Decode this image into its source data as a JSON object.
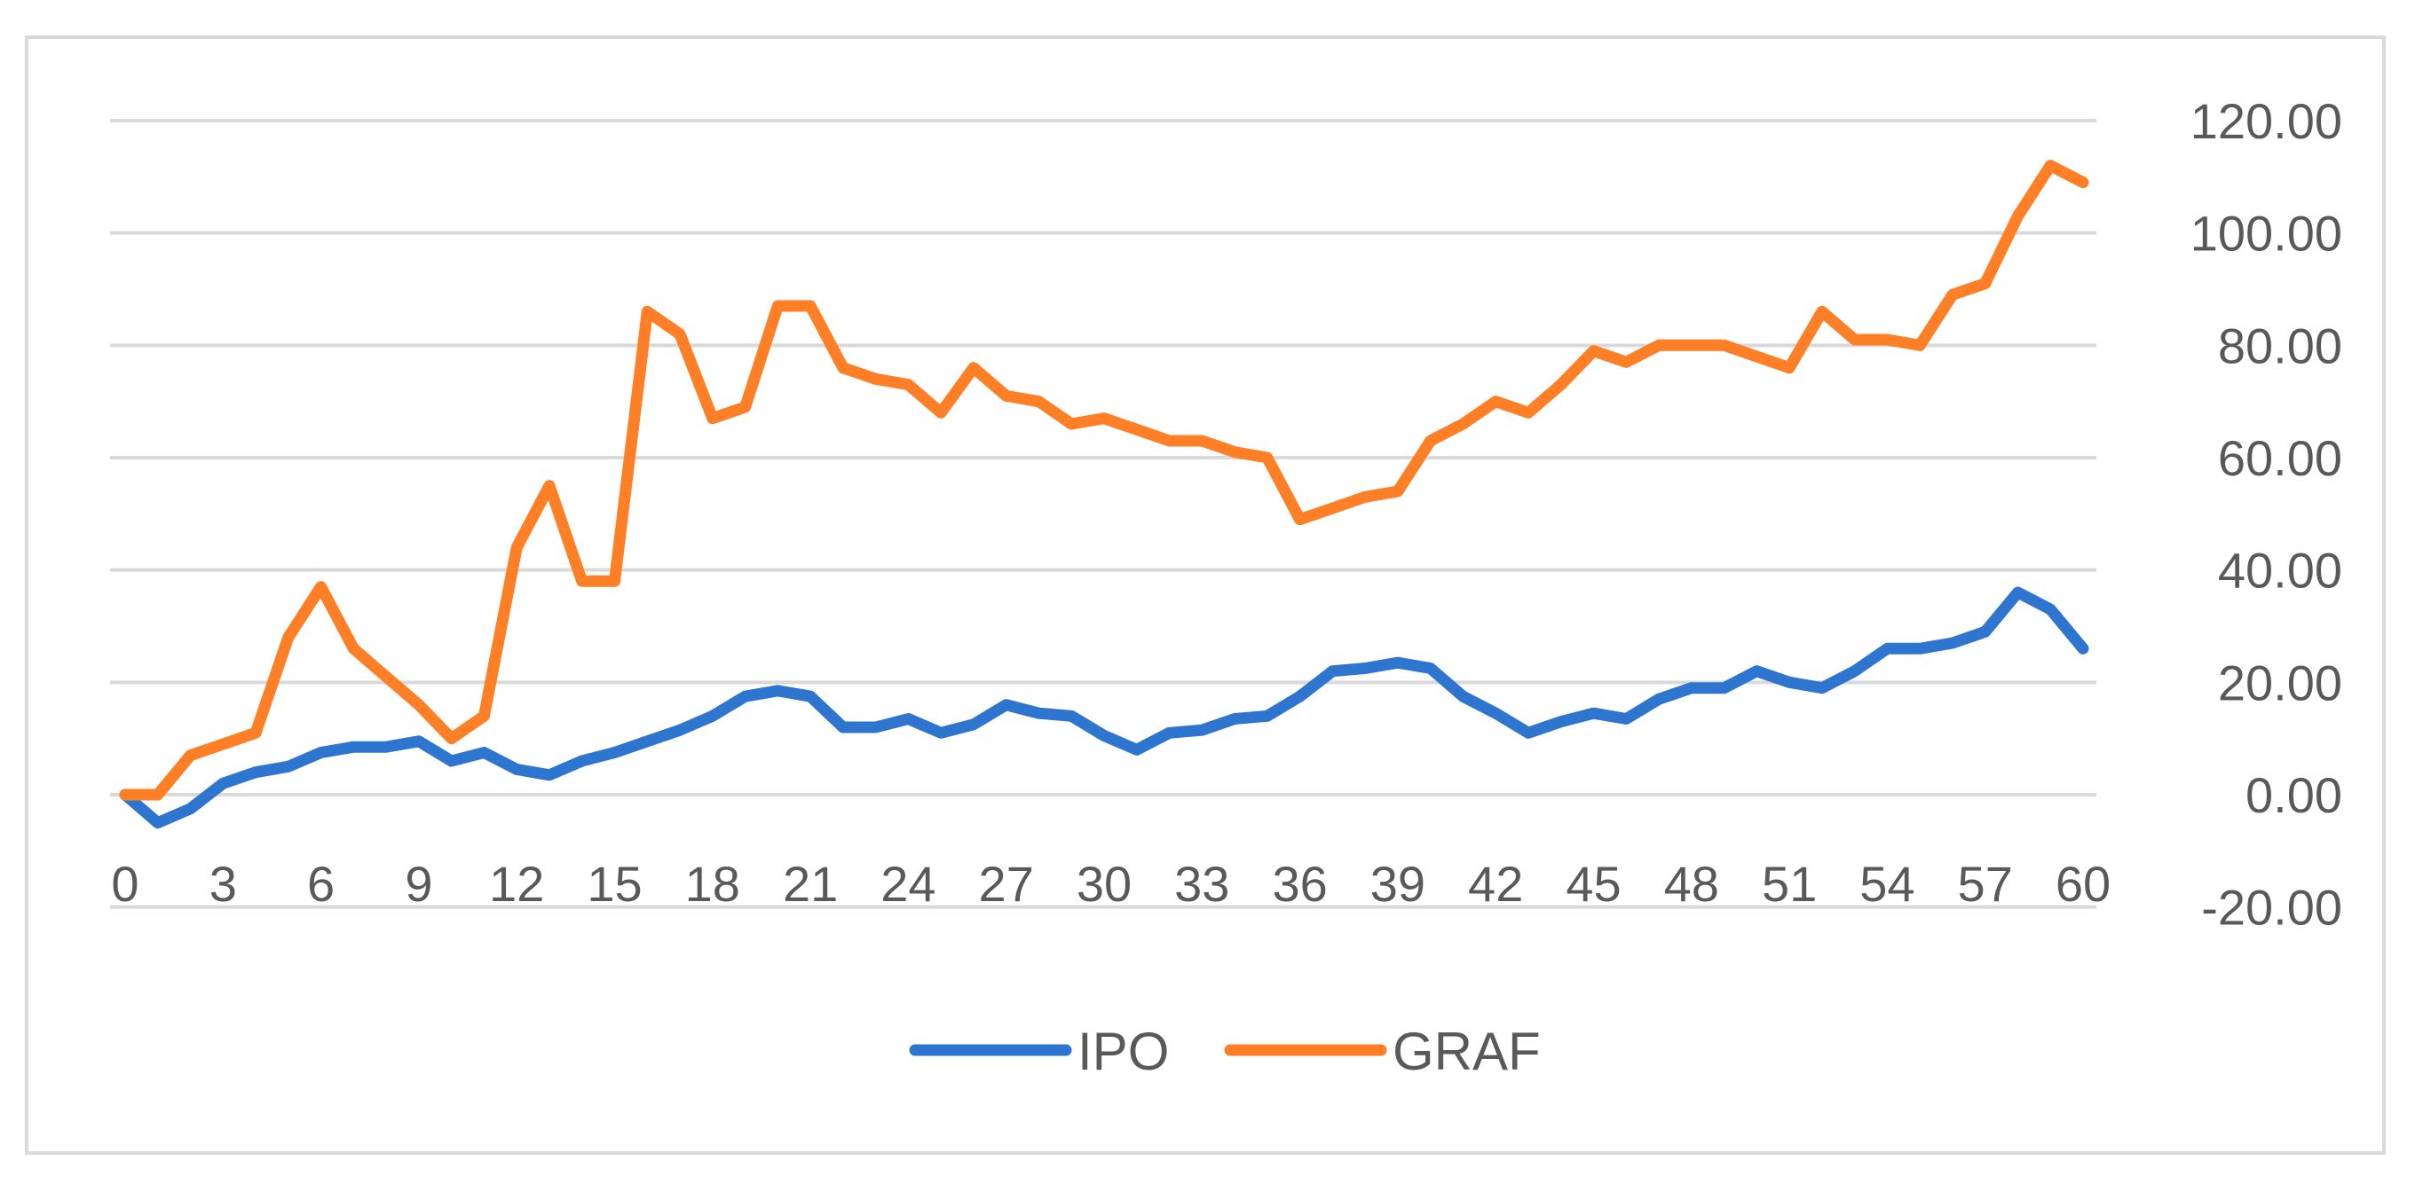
{
  "chart_data": {
    "type": "line",
    "title": "",
    "xlabel": "",
    "ylabel": "",
    "grid": true,
    "legend_position": "bottom",
    "y_axis_position": "right",
    "ylim": [
      -20,
      120
    ],
    "y_ticks": [
      -20,
      0,
      20,
      40,
      60,
      80,
      100,
      120
    ],
    "y_tick_labels": [
      "-20.00",
      "0.00",
      "20.00",
      "40.00",
      "60.00",
      "80.00",
      "100.00",
      "120.00"
    ],
    "x_ticks": [
      0,
      3,
      6,
      9,
      12,
      15,
      18,
      21,
      24,
      27,
      30,
      33,
      36,
      39,
      42,
      45,
      48,
      51,
      54,
      57,
      60
    ],
    "x": [
      0,
      1,
      2,
      3,
      4,
      5,
      6,
      7,
      8,
      9,
      10,
      11,
      12,
      13,
      14,
      15,
      16,
      17,
      18,
      19,
      20,
      21,
      22,
      23,
      24,
      25,
      26,
      27,
      28,
      29,
      30,
      31,
      32,
      33,
      34,
      35,
      36,
      37,
      38,
      39,
      40,
      41,
      42,
      43,
      44,
      45,
      46,
      47,
      48,
      49,
      50,
      51,
      52,
      53,
      54,
      55,
      56,
      57,
      58,
      59,
      60
    ],
    "series": [
      {
        "name": "IPO",
        "color": "#2e75d0",
        "values": [
          0,
          -5,
          -2.5,
          2,
          4,
          5,
          7.5,
          8.5,
          8.5,
          9.5,
          6,
          7.5,
          4.5,
          3.5,
          6,
          7.5,
          9.5,
          11.5,
          14,
          17.5,
          18.5,
          17.5,
          12,
          12,
          13.5,
          11,
          12.5,
          16,
          14.5,
          14,
          10.5,
          8,
          11,
          11.5,
          13.5,
          14,
          17.5,
          22,
          22.5,
          23.5,
          22.5,
          17.5,
          14.5,
          11,
          13,
          14.5,
          13.5,
          17,
          19,
          19,
          22,
          20,
          19,
          22,
          26,
          26,
          27,
          29,
          36,
          33,
          26
        ]
      },
      {
        "name": "GRAF",
        "color": "#ff7f27",
        "values": [
          0,
          0,
          7,
          9,
          11,
          28,
          37,
          26,
          21,
          16,
          10,
          14,
          44,
          55,
          38,
          38,
          86,
          82,
          67,
          69,
          87,
          87,
          76,
          74,
          73,
          68,
          76,
          71,
          70,
          66,
          67,
          65,
          63,
          63,
          61,
          60,
          49,
          51,
          53,
          54,
          63,
          66,
          70,
          68,
          73,
          79,
          77,
          80,
          80,
          80,
          78,
          76,
          86,
          81,
          81,
          80,
          89,
          91,
          103,
          112,
          109
        ]
      }
    ]
  }
}
